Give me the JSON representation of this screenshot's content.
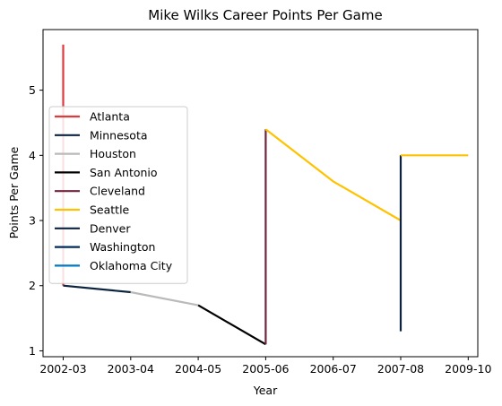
{
  "chart_data": {
    "type": "line",
    "title": "Mike Wilks  Career Points Per Game",
    "xlabel": "Year",
    "ylabel": "Points Per Game",
    "categories": [
      "2002-03",
      "2003-04",
      "2004-05",
      "2005-06",
      "2006-07",
      "2007-08",
      "2009-10"
    ],
    "yticks": [
      1,
      2,
      3,
      4,
      5
    ],
    "ylim": [
      0.91,
      5.93
    ],
    "grid": false,
    "legend_position": "center-left",
    "series": [
      {
        "name": "Atlanta",
        "color": "#E03A3E",
        "points": [
          [
            0,
            5.7
          ],
          [
            0,
            2.0
          ]
        ]
      },
      {
        "name": "Minnesota",
        "color": "#0C2340",
        "points": [
          [
            0,
            2.0
          ],
          [
            1,
            1.9
          ]
        ]
      },
      {
        "name": "Houston",
        "color": "#BABABA",
        "points": [
          [
            1,
            1.9
          ],
          [
            2,
            1.7
          ]
        ]
      },
      {
        "name": "San Antonio",
        "color": "#000000",
        "points": [
          [
            2,
            1.7
          ],
          [
            3,
            1.1
          ]
        ]
      },
      {
        "name": "Cleveland",
        "color": "#6F263D",
        "points": [
          [
            3,
            1.1
          ],
          [
            3,
            4.4
          ]
        ]
      },
      {
        "name": "Seattle",
        "color": "#FFC200",
        "points": [
          [
            3,
            4.4
          ],
          [
            4,
            3.6
          ],
          [
            5,
            3.0
          ]
        ]
      },
      {
        "name": "Denver",
        "color": "#0E2240",
        "points": [
          [
            5,
            1.3
          ],
          [
            5,
            4.0
          ]
        ]
      },
      {
        "name": "Washington",
        "color": "#002B5C",
        "points": [
          [
            5,
            4.0
          ]
        ]
      },
      {
        "name": "Oklahoma City",
        "color": "#007AC1",
        "points": [
          [
            5,
            4.0
          ]
        ]
      },
      {
        "name": "Seattle",
        "color": "#FFC200",
        "legend": false,
        "points": [
          [
            5,
            4.0
          ],
          [
            6,
            4.0
          ]
        ]
      }
    ]
  }
}
